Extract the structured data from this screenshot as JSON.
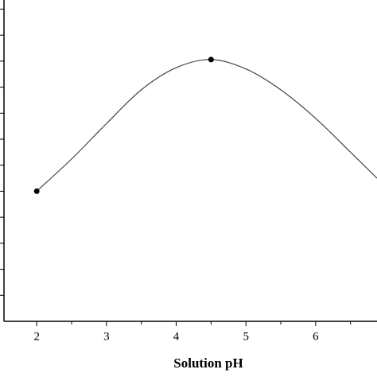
{
  "chart_data": {
    "type": "line",
    "x_label": "Solution pH",
    "xlim": [
      1.53,
      6.88
    ],
    "ylim": [
      0,
      12.35
    ],
    "xticks": [
      2,
      3,
      4,
      5,
      6
    ],
    "xminorticks": [
      2.5,
      3.5,
      4.5,
      5.5,
      6.5
    ],
    "yticks": [
      1,
      2,
      3,
      4,
      5,
      6,
      7,
      8,
      9,
      10,
      11,
      12
    ],
    "ytick_labels": false,
    "series": [
      {
        "kind": "line",
        "color": "#444444",
        "x": [
          2,
          2.5,
          3,
          3.5,
          4,
          4.5,
          5,
          5.5,
          6,
          6.5,
          6.88
        ],
        "values": [
          5,
          6.24,
          7.6,
          8.9,
          9.75,
          10.06,
          9.7,
          8.9,
          7.8,
          6.5,
          5.5
        ]
      },
      {
        "kind": "points",
        "color": "#000000",
        "x": [
          2,
          4.5
        ],
        "values": [
          5,
          10.06
        ]
      }
    ]
  }
}
